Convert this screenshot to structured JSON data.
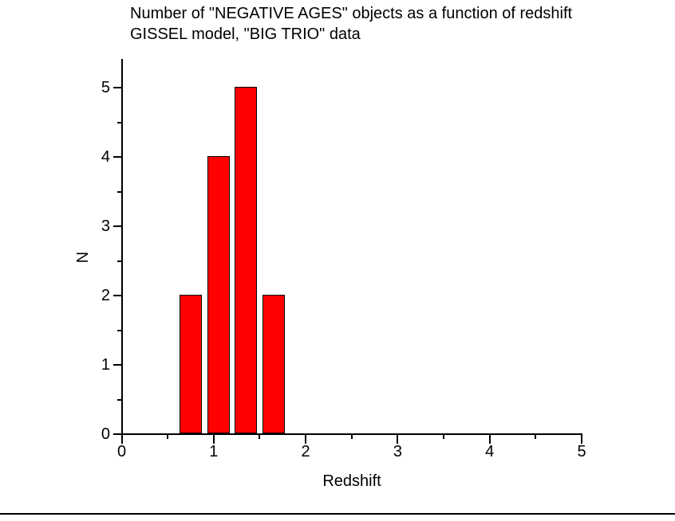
{
  "title": {
    "line1": "Number of \"NEGATIVE AGES\" objects as a function of redshift",
    "line2": "GISSEL model, \"BIG TRIO\" data"
  },
  "axes": {
    "x_label": "Redshift",
    "y_label": "N"
  },
  "chart_data": {
    "type": "bar",
    "title": "Number of \"NEGATIVE AGES\" objects as a function of redshift GISSEL model, \"BIG TRIO\" data",
    "xlabel": "Redshift",
    "ylabel": "N",
    "xlim": [
      0,
      5
    ],
    "ylim": [
      0,
      5.4
    ],
    "x_major_ticks": [
      0,
      1,
      2,
      3,
      4,
      5
    ],
    "x_minor_ticks": [
      0.5,
      1.5,
      2.5,
      3.5,
      4.5
    ],
    "y_major_ticks": [
      0,
      1,
      2,
      3,
      4,
      5
    ],
    "y_minor_ticks": [
      0.5,
      1.5,
      2.5,
      3.5,
      4.5
    ],
    "bar_width": 0.24,
    "bars": [
      {
        "x_center": 0.75,
        "value": 2
      },
      {
        "x_center": 1.05,
        "value": 4
      },
      {
        "x_center": 1.35,
        "value": 5
      },
      {
        "x_center": 1.65,
        "value": 2
      }
    ],
    "grid": false,
    "legend": false,
    "colors": {
      "bar_fill": "#FF0000",
      "bar_border": "#000000",
      "axis": "#000000",
      "text": "#000000",
      "background": "#FFFFFF"
    }
  }
}
